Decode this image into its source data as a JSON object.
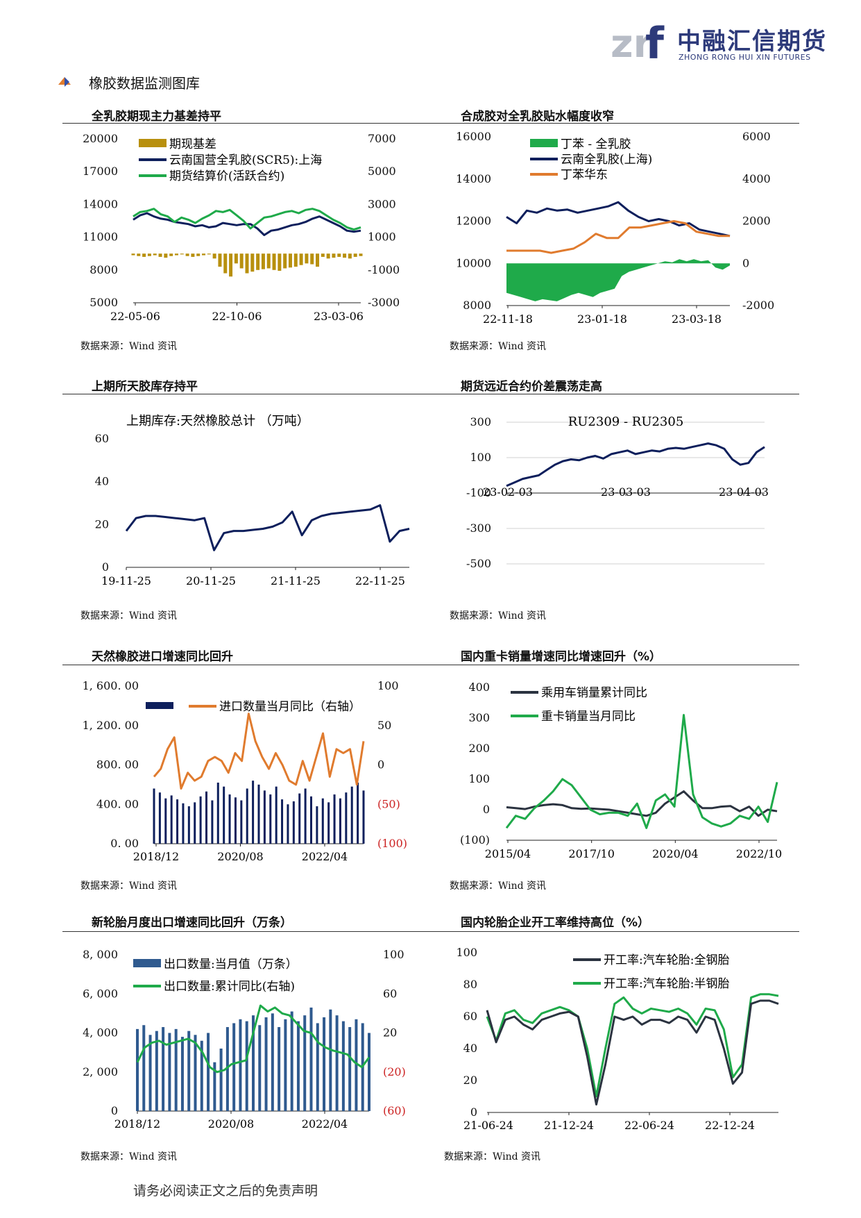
{
  "header": {
    "logo_cn": "中融汇信期货",
    "logo_en": "ZHONG RONG HUI XIN FUTURES",
    "section_title": "橡胶数据监测图库"
  },
  "colors": {
    "navy": "#0d1f5c",
    "green": "#1faa4a",
    "orange": "#e07b2e",
    "gold": "#b8900e",
    "steel": "#2f5a8f",
    "dark": "#2b3340",
    "red_axis": "#cc2222"
  },
  "panels": [
    {
      "title": "全乳胶期现主力基差持平",
      "source": "数据来源：Wind 资讯"
    },
    {
      "title": "合成胶对全乳胶贴水幅度收窄",
      "source": "数据来源：Wind 资讯"
    },
    {
      "title": "上期所天胶库存持平",
      "source": "数据来源：Wind 资讯"
    },
    {
      "title": "期货远近合约价差震荡走高",
      "source": "数据来源：Wind 资讯"
    },
    {
      "title": "天然橡胶进口增速同比回升",
      "source": "数据来源：Wind 资讯"
    },
    {
      "title": "国内重卡销量增速同比增速回升（%）",
      "source": "数据来源：Wind 资讯"
    },
    {
      "title": "新轮胎月度出口增速同比回升（万条）",
      "source": "数据来源：Wind 资讯"
    },
    {
      "title": "国内轮胎企业开工率维持高位（%）",
      "source": "数据来源：Wind 资讯"
    }
  ],
  "footer": "请务必阅读正文之后的免责声明",
  "chart_data": [
    {
      "type": "line",
      "title": "全乳胶期现主力基差持平",
      "x_ticks": [
        "22-05-06",
        "22-10-06",
        "23-03-06"
      ],
      "left_axis": {
        "min": 5000,
        "max": 20000,
        "ticks": [
          "20000",
          "17000",
          "14000",
          "11000",
          "8000",
          "5000"
        ]
      },
      "right_axis": {
        "min": -3000,
        "max": 7000,
        "ticks": [
          "7000",
          "5000",
          "3000",
          "1000",
          "-1000",
          "-3000"
        ]
      },
      "series": [
        {
          "name": "期现基差",
          "kind": "bar",
          "axis": "right",
          "color": "gold",
          "values": [
            -100,
            -150,
            -200,
            -150,
            -100,
            -200,
            -250,
            -150,
            -100,
            -50,
            -150,
            -200,
            -150,
            -100,
            -50,
            -300,
            -800,
            -1200,
            -1400,
            -600,
            -900,
            -1200,
            -1100,
            -1000,
            -950,
            -900,
            -1000,
            -1050,
            -900,
            -850,
            -800,
            -700,
            -600,
            -650,
            -800,
            -200,
            -300,
            -250,
            -200,
            -250,
            -300,
            -200,
            -150
          ]
        },
        {
          "name": "云南国营全乳胶(SCR5):上海",
          "kind": "line",
          "axis": "left",
          "color": "navy",
          "values": [
            12600,
            13000,
            13200,
            12900,
            12700,
            12600,
            12400,
            12300,
            12200,
            12000,
            12100,
            11900,
            12000,
            12300,
            12200,
            12100,
            12200,
            12200,
            11800,
            11200,
            11600,
            11700,
            11900,
            12100,
            12200,
            12400,
            12700,
            12900,
            12600,
            12300,
            12000,
            11600,
            11500,
            11600
          ]
        },
        {
          "name": "期货结算价(活跃合约)",
          "kind": "line",
          "axis": "left",
          "color": "green",
          "values": [
            12900,
            13300,
            13400,
            13600,
            13100,
            12900,
            12400,
            12800,
            12600,
            12300,
            12700,
            13000,
            13400,
            13300,
            13500,
            13000,
            12500,
            11800,
            12300,
            12800,
            12900,
            13100,
            13300,
            13400,
            13200,
            13500,
            13600,
            13400,
            13000,
            12600,
            12300,
            11900,
            11700,
            11900
          ]
        }
      ]
    },
    {
      "type": "line",
      "title": "合成胶对全乳胶贴水幅度收窄",
      "x_ticks": [
        "22-11-18",
        "23-01-18",
        "23-03-18"
      ],
      "left_axis": {
        "min": 8000,
        "max": 16000,
        "ticks": [
          "16000",
          "14000",
          "12000",
          "10000",
          "8000"
        ]
      },
      "right_axis": {
        "min": -2000,
        "max": 6000,
        "ticks": [
          "6000",
          "4000",
          "2000",
          "0",
          "-2000"
        ]
      },
      "series": [
        {
          "name": "丁苯 - 全乳胶",
          "kind": "area",
          "axis": "right",
          "color": "green",
          "values": [
            -1400,
            -1500,
            -1600,
            -1700,
            -1800,
            -1700,
            -1750,
            -1800,
            -1650,
            -1500,
            -1400,
            -1500,
            -1600,
            -1400,
            -1300,
            -1200,
            -600,
            -400,
            -300,
            -200,
            -100,
            0,
            100,
            50,
            200,
            100,
            200,
            100,
            150,
            -200,
            -300,
            -100
          ]
        },
        {
          "name": "云南全乳胶(上海)",
          "kind": "line",
          "axis": "left",
          "color": "navy",
          "values": [
            12200,
            11900,
            12500,
            12400,
            12600,
            12500,
            12550,
            12400,
            12500,
            12600,
            12700,
            12900,
            12500,
            12200,
            12000,
            12100,
            12000,
            11800,
            11900,
            11600,
            11500,
            11400,
            11300
          ]
        },
        {
          "name": "丁苯华东",
          "kind": "line",
          "axis": "left",
          "color": "orange",
          "values": [
            10600,
            10600,
            10600,
            10600,
            10500,
            10600,
            10700,
            11000,
            11400,
            11200,
            11200,
            11700,
            11700,
            11800,
            11900,
            12000,
            11900,
            11500,
            11400,
            11300,
            11300
          ]
        }
      ]
    },
    {
      "type": "line",
      "title": "上期所天胶库存持平",
      "series_label": "上期库存:天然橡胶总计 （万吨）",
      "x_ticks": [
        "19-11-25",
        "20-11-25",
        "21-11-25",
        "22-11-25"
      ],
      "y_axis": {
        "min": 0,
        "max": 60,
        "ticks": [
          "60",
          "40",
          "20",
          "0"
        ]
      },
      "series": [
        {
          "name": "上期库存:天然橡胶总计",
          "color": "navy",
          "values": [
            17,
            23,
            24,
            24,
            23.5,
            23,
            22.5,
            22,
            23,
            8,
            16,
            17,
            17,
            17.5,
            18,
            19,
            21,
            26,
            15,
            22,
            24,
            25,
            25.5,
            26,
            26.5,
            27,
            29,
            12,
            17,
            18
          ]
        }
      ]
    },
    {
      "type": "line",
      "title": "期货远近合约价差震荡走高",
      "series_label": "RU2309 - RU2305",
      "x_ticks": [
        "23-02-03",
        "23-03-03",
        "23-04-03"
      ],
      "y_axis": {
        "min": -500,
        "max": 300,
        "ticks": [
          "300",
          "100",
          "-100",
          "-300",
          "-500"
        ]
      },
      "series": [
        {
          "name": "RU2309 - RU2305",
          "color": "navy",
          "values": [
            -60,
            -40,
            -20,
            -10,
            0,
            30,
            60,
            80,
            90,
            85,
            100,
            110,
            95,
            120,
            130,
            140,
            120,
            130,
            140,
            135,
            150,
            155,
            150,
            160,
            170,
            180,
            170,
            150,
            90,
            60,
            70,
            130,
            160
          ]
        }
      ]
    },
    {
      "type": "bar",
      "title": "天然橡胶进口增速同比回升",
      "x_ticks": [
        "2018/12",
        "2020/08",
        "2022/04"
      ],
      "left_axis": {
        "min": 0,
        "max": 1600,
        "ticks": [
          "1, 600. 00",
          "1, 200. 00",
          "800. 00",
          "400. 00",
          "0. 00"
        ]
      },
      "right_axis": {
        "min": -100,
        "max": 100,
        "ticks": [
          "100",
          "50",
          "0",
          "(50)",
          "(100)"
        ]
      },
      "series": [
        {
          "name": "",
          "kind": "bar",
          "axis": "left",
          "color": "navy",
          "values": [
            560,
            520,
            460,
            490,
            450,
            410,
            380,
            420,
            480,
            530,
            440,
            620,
            580,
            500,
            470,
            440,
            560,
            640,
            600,
            540,
            500,
            580,
            450,
            400,
            430,
            510,
            560,
            480,
            380,
            460,
            420,
            500,
            460,
            520,
            580,
            620,
            540
          ]
        },
        {
          "name": "进口数量当月同比（右轴）",
          "kind": "line",
          "axis": "right",
          "color": "orange",
          "values": [
            -15,
            -5,
            20,
            35,
            -30,
            -10,
            -20,
            -15,
            5,
            10,
            5,
            -10,
            15,
            5,
            65,
            30,
            10,
            -5,
            15,
            0,
            -20,
            -25,
            5,
            -20,
            10,
            40,
            -15,
            20,
            15,
            20,
            -25,
            30
          ]
        }
      ]
    },
    {
      "type": "line",
      "title": "国内重卡销量增速同比增速回升（%）",
      "x_ticks": [
        "2015/04",
        "2017/10",
        "2020/04",
        "2022/10"
      ],
      "y_axis": {
        "min": -100,
        "max": 400,
        "ticks": [
          "400",
          "300",
          "200",
          "100",
          "0",
          "(100)"
        ]
      },
      "series": [
        {
          "name": "乘用车销量累计同比",
          "color": "dark",
          "values": [
            8,
            5,
            2,
            10,
            15,
            18,
            15,
            5,
            3,
            4,
            2,
            0,
            -5,
            -10,
            -15,
            -20,
            -10,
            20,
            40,
            60,
            30,
            5,
            5,
            10,
            12,
            -5,
            10,
            -20,
            0,
            -5
          ]
        },
        {
          "name": "重卡销量当月同比",
          "color": "green",
          "values": [
            -60,
            -20,
            -30,
            5,
            30,
            60,
            100,
            80,
            40,
            0,
            -15,
            -10,
            -10,
            -20,
            20,
            -60,
            30,
            50,
            10,
            310,
            50,
            -25,
            -45,
            -55,
            -45,
            -20,
            -30,
            10,
            -40,
            90
          ]
        }
      ]
    },
    {
      "type": "bar",
      "title": "新轮胎月度出口增速同比回升（万条）",
      "x_ticks": [
        "2018/12",
        "2020/08",
        "2022/04"
      ],
      "left_axis": {
        "min": 0,
        "max": 8000,
        "ticks": [
          "8, 000",
          "6, 000",
          "4, 000",
          "2, 000",
          "0"
        ]
      },
      "right_axis": {
        "min": -60,
        "max": 100,
        "ticks": [
          "100",
          "60",
          "20",
          "(20)",
          "(60)"
        ]
      },
      "series": [
        {
          "name": "出口数量:当月值（万条）",
          "kind": "bar",
          "axis": "left",
          "color": "steel",
          "values": [
            4200,
            4400,
            3900,
            4100,
            4300,
            4000,
            4200,
            3800,
            4100,
            3900,
            3600,
            4000,
            2500,
            3200,
            4300,
            4500,
            4700,
            4600,
            4900,
            4400,
            4800,
            5000,
            4300,
            4700,
            5100,
            4600,
            4900,
            5300,
            4500,
            4800,
            5200,
            4900,
            4600,
            4300,
            4700,
            4500,
            4000
          ]
        },
        {
          "name": "出口数量:累计同比(右轴)",
          "kind": "line",
          "axis": "right",
          "color": "green",
          "values": [
            -10,
            5,
            10,
            12,
            8,
            10,
            12,
            14,
            10,
            0,
            -15,
            -20,
            -18,
            -12,
            -10,
            -8,
            20,
            48,
            42,
            46,
            40,
            38,
            30,
            22,
            20,
            10,
            5,
            2,
            0,
            -2,
            -10,
            -15,
            -5
          ]
        }
      ]
    },
    {
      "type": "line",
      "title": "国内轮胎企业开工率维持高位（%）",
      "x_ticks": [
        "21-06-24",
        "21-12-24",
        "22-06-24",
        "22-12-24"
      ],
      "y_axis": {
        "min": 0,
        "max": 100,
        "ticks": [
          "100",
          "80",
          "60",
          "40",
          "20",
          "0"
        ]
      },
      "series": [
        {
          "name": "开工率:汽车轮胎:全钢胎",
          "color": "dark",
          "values": [
            64,
            44,
            58,
            60,
            55,
            52,
            58,
            60,
            62,
            63,
            60,
            35,
            5,
            30,
            60,
            58,
            60,
            55,
            58,
            58,
            56,
            60,
            58,
            50,
            60,
            58,
            40,
            18,
            25,
            68,
            70,
            70,
            68
          ]
        },
        {
          "name": "开工率:汽车轮胎:半钢胎",
          "color": "green",
          "values": [
            60,
            45,
            62,
            64,
            58,
            56,
            62,
            64,
            66,
            64,
            60,
            40,
            10,
            40,
            68,
            72,
            65,
            62,
            65,
            64,
            63,
            65,
            62,
            55,
            65,
            64,
            52,
            22,
            30,
            72,
            74,
            74,
            73
          ]
        }
      ]
    }
  ]
}
